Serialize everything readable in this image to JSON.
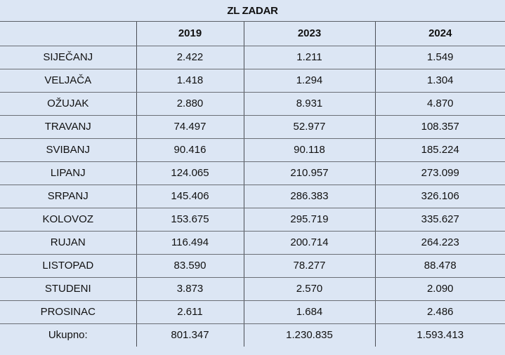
{
  "title": "ZL ZADAR",
  "header": {
    "blank": "",
    "years": [
      "2019",
      "2023",
      "2024"
    ]
  },
  "rows": [
    {
      "label": "SIJEČANJ",
      "values": [
        "2.422",
        "1.211",
        "1.549"
      ]
    },
    {
      "label": "VELJAČA",
      "values": [
        "1.418",
        "1.294",
        "1.304"
      ]
    },
    {
      "label": "OŽUJAK",
      "values": [
        "2.880",
        "8.931",
        "4.870"
      ]
    },
    {
      "label": "TRAVANJ",
      "values": [
        "74.497",
        "52.977",
        "108.357"
      ]
    },
    {
      "label": "SVIBANJ",
      "values": [
        "90.416",
        "90.118",
        "185.224"
      ]
    },
    {
      "label": "LIPANJ",
      "values": [
        "124.065",
        "210.957",
        "273.099"
      ]
    },
    {
      "label": "SRPANJ",
      "values": [
        "145.406",
        "286.383",
        "326.106"
      ]
    },
    {
      "label": "KOLOVOZ",
      "values": [
        "153.675",
        "295.719",
        "335.627"
      ]
    },
    {
      "label": "RUJAN",
      "values": [
        "116.494",
        "200.714",
        "264.223"
      ]
    },
    {
      "label": "LISTOPAD",
      "values": [
        "83.590",
        "78.277",
        "88.478"
      ]
    },
    {
      "label": "STUDENI",
      "values": [
        "3.873",
        "2.570",
        "2.090"
      ]
    },
    {
      "label": "PROSINAC",
      "values": [
        "2.611",
        "1.684",
        "2.486"
      ]
    }
  ],
  "total": {
    "label": "Ukupno:",
    "values": [
      "801.347",
      "1.230.835",
      "1.593.413"
    ]
  },
  "colors": {
    "background": "#dce6f4",
    "gridline": "#4a4e55",
    "text": "#111111"
  }
}
